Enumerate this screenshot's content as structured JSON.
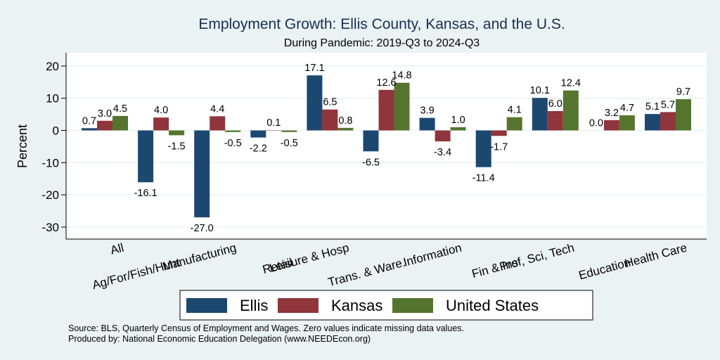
{
  "chart_data": {
    "type": "bar",
    "title": "Employment Growth: Ellis County, Kansas, and the U.S.",
    "subtitle": "During Pandemic: 2019-Q3 to 2024-Q3",
    "xlabel": "",
    "ylabel": "Percent",
    "ylim": [
      -34,
      24
    ],
    "yticks": [
      20,
      10,
      0,
      -10,
      -20,
      -30
    ],
    "grid": true,
    "legend_position": "bottom",
    "categories": [
      "All",
      "Ag/For/Fish/Hunt",
      "Manufacturing",
      "Retail",
      "Leisure & Hosp",
      "Trans. & Ware.",
      "Information",
      "Fin & Ins",
      "Prof, Sci, Tech",
      "Education",
      "Health Care"
    ],
    "series": [
      {
        "name": "Ellis",
        "color": "#1c4870",
        "values": [
          0.7,
          -16.1,
          -27.0,
          -2.2,
          17.1,
          -6.5,
          3.9,
          -11.4,
          10.1,
          0.0,
          5.1
        ]
      },
      {
        "name": "Kansas",
        "color": "#90353b",
        "values": [
          3.0,
          4.0,
          4.4,
          0.1,
          6.5,
          12.6,
          -3.4,
          -1.7,
          6.0,
          3.2,
          5.7
        ]
      },
      {
        "name": "United States",
        "color": "#55752f",
        "values": [
          4.5,
          -1.5,
          -0.5,
          -0.5,
          0.8,
          14.8,
          1.0,
          4.1,
          12.4,
          4.7,
          9.7
        ]
      }
    ],
    "footer": [
      "Source: BLS, Quarterly Census of Employment and Wages. Zero values indicate missing data values.",
      "Produced by: National Economic Education Delegation (www.NEEDEcon.org)"
    ]
  }
}
